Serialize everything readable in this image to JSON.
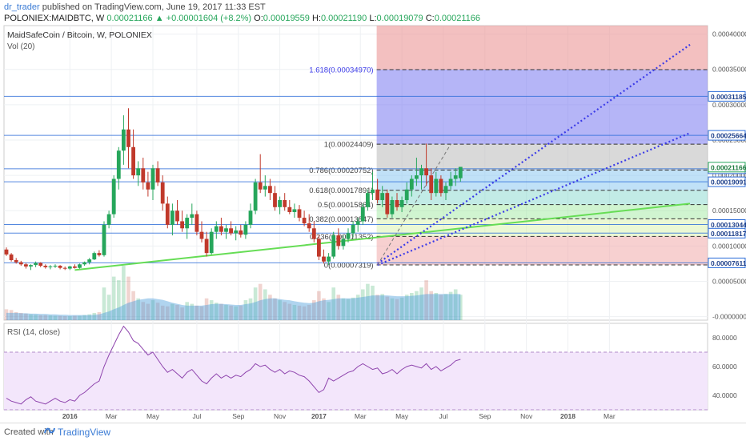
{
  "header": {
    "author": "dr_trader",
    "published_text": "published on TradingView.com, June 19, 2017 11:33 EST",
    "symbol": "POLONIEX:MAIDBTC, W",
    "last": "0.00021166",
    "change": "▲ +0.00001604 (+8.2%)",
    "o_label": "O:",
    "o": "0.00019559",
    "h_label": "H:",
    "h": "0.00021190",
    "l_label": "L:",
    "l": "0.00019079",
    "c_label": "C:",
    "c": "0.00021166"
  },
  "footer": {
    "created_label": "Created with",
    "brand": "TradingView"
  },
  "colors": {
    "up": "#26a65b",
    "down": "#c0392b",
    "hline": "#2a6bd8",
    "support": "#66dd55",
    "channel": "#3b3be8",
    "rsi_line": "#8e44ad",
    "rsi_band": "#f3e6fb"
  },
  "chart_data": {
    "type": "candlestick",
    "title": "MaidSafeCoin / Bitcoin, W, POLONIEX",
    "volume_label": "Vol (20)",
    "x_ticks": [
      "2016",
      "Mar",
      "May",
      "Jul",
      "Sep",
      "Nov",
      "2017",
      "Mar",
      "May",
      "Jul",
      "Sep",
      "Nov",
      "2018",
      "Mar"
    ],
    "y_ticks": [
      "0.00040000",
      "0.00035000",
      "0.00030000",
      "0.00025000",
      "0.00020000",
      "0.00015000",
      "0.00010000",
      "0.00005000",
      "-0.00000000"
    ],
    "ylim": [
      -5e-06,
      0.000412
    ],
    "horizontal_levels": [
      0.00031185,
      0.00025664,
      0.00020932,
      0.00019091,
      0.00013044,
      0.00011817,
      7.611e-05
    ],
    "level_labels": [
      "0.00031185",
      "0.00025664",
      "0.00020932",
      "0.00019091",
      "0.00013044",
      "0.00011817",
      "0.00007611"
    ],
    "current_price": 0.00021166,
    "current_label": "0.00021166",
    "fib_start_index": 76,
    "fib_levels": [
      {
        "ratio": "1.618",
        "price": 0.0003497,
        "label": "1.618(0.00034970)"
      },
      {
        "ratio": "1",
        "price": 0.00024409,
        "label": "1(0.00024409)"
      },
      {
        "ratio": "0.786",
        "price": 0.00020752,
        "label": "0.786(0.00020752)"
      },
      {
        "ratio": "0.618",
        "price": 0.00017891,
        "label": "0.618(0.00017891)"
      },
      {
        "ratio": "0.5",
        "price": 0.00015864,
        "label": "0.5(0.00015864)"
      },
      {
        "ratio": "0.382",
        "price": 0.00013847,
        "label": "0.382(0.00013847)"
      },
      {
        "ratio": "0.236",
        "price": 0.00011352,
        "label": "0.236(0.00011352)"
      },
      {
        "ratio": "0",
        "price": 7.319e-05,
        "label": "0(0.00007319)"
      }
    ],
    "candles": [
      [
        9.5e-05,
        9.8e-05,
        8.6e-05,
        8.8e-05
      ],
      [
        8.8e-05,
        9e-05,
        7.8e-05,
        8e-05
      ],
      [
        8e-05,
        8.3e-05,
        7.5e-05,
        7.7e-05
      ],
      [
        7.7e-05,
        7.9e-05,
        7.2e-05,
        7.4e-05
      ],
      [
        7.4e-05,
        7.6e-05,
        6.8e-05,
        7.1e-05
      ],
      [
        7.1e-05,
        7.4e-05,
        6.6e-05,
        7.3e-05
      ],
      [
        7.3e-05,
        7.8e-05,
        7e-05,
        7.6e-05
      ],
      [
        7.6e-05,
        7.7e-05,
        7e-05,
        7.2e-05
      ],
      [
        7.2e-05,
        7.4e-05,
        6.8e-05,
        7e-05
      ],
      [
        7e-05,
        7.3e-05,
        6.7e-05,
        7.1e-05
      ],
      [
        7.1e-05,
        7.4e-05,
        6.9e-05,
        7.2e-05
      ],
      [
        7.2e-05,
        7.3e-05,
        6.7e-05,
        6.9e-05
      ],
      [
        6.9e-05,
        7.1e-05,
        6.6e-05,
        6.8e-05
      ],
      [
        6.8e-05,
        7.2e-05,
        6.6e-05,
        7.1e-05
      ],
      [
        7.1e-05,
        7.4e-05,
        6.8e-05,
        6.9e-05
      ],
      [
        6.9e-05,
        7.5e-05,
        6.8e-05,
        7.4e-05
      ],
      [
        7.4e-05,
        7.8e-05,
        7.2e-05,
        7.7e-05
      ],
      [
        7.7e-05,
        8.3e-05,
        7.4e-05,
        8.1e-05
      ],
      [
        8.1e-05,
        9.2e-05,
        8e-05,
        9e-05
      ],
      [
        9e-05,
        9.4e-05,
        8.5e-05,
        8.7e-05
      ],
      [
        8.7e-05,
        0.000135,
        8.5e-05,
        0.00013
      ],
      [
        0.00013,
        0.00015,
        0.000125,
        0.000145
      ],
      [
        0.000145,
        0.0002,
        0.00014,
        0.000195
      ],
      [
        0.000195,
        0.00024,
        0.00018,
        0.000235
      ],
      [
        0.000235,
        0.000285,
        0.000215,
        0.000265
      ],
      [
        0.000265,
        0.000295,
        0.00021,
        0.00024
      ],
      [
        0.00024,
        0.000265,
        0.000195,
        0.0002
      ],
      [
        0.0002,
        0.00022,
        0.000185,
        0.00021
      ],
      [
        0.00021,
        0.000225,
        0.00018,
        0.00019
      ],
      [
        0.00019,
        0.000205,
        0.00017,
        0.00018
      ],
      [
        0.00018,
        0.000215,
        0.000165,
        0.00021
      ],
      [
        0.00021,
        0.00022,
        0.000185,
        0.00019
      ],
      [
        0.00019,
        0.0002,
        0.00015,
        0.00016
      ],
      [
        0.00016,
        0.00017,
        0.000125,
        0.00013
      ],
      [
        0.00013,
        0.00016,
        0.000115,
        0.00015
      ],
      [
        0.00015,
        0.000165,
        0.00013,
        0.000135
      ],
      [
        0.000135,
        0.00015,
        0.00012,
        0.000125
      ],
      [
        0.000125,
        0.000145,
        0.00011,
        0.00014
      ],
      [
        0.00014,
        0.00016,
        0.00013,
        0.000145
      ],
      [
        0.000145,
        0.00015,
        0.000115,
        0.00012
      ],
      [
        0.00012,
        0.000135,
        0.000105,
        0.00011
      ],
      [
        0.00011,
        0.00012,
        8.5e-05,
        9e-05
      ],
      [
        9e-05,
        0.000125,
        8.8e-05,
        0.00012
      ],
      [
        0.00012,
        0.000135,
        0.00011,
        0.000128
      ],
      [
        0.000128,
        0.00014,
        0.000115,
        0.00012
      ],
      [
        0.00012,
        0.00013,
        0.00011,
        0.000125
      ],
      [
        0.000125,
        0.000135,
        0.000115,
        0.000118
      ],
      [
        0.000118,
        0.000128,
        0.000108,
        0.000122
      ],
      [
        0.000122,
        0.00013,
        0.000112,
        0.000116
      ],
      [
        0.000116,
        0.000135,
        0.00011,
        0.00013
      ],
      [
        0.00013,
        0.00016,
        0.000125,
        0.00015
      ],
      [
        0.00015,
        0.000195,
        0.000145,
        0.00019
      ],
      [
        0.00019,
        0.00023,
        0.000175,
        0.00018
      ],
      [
        0.00018,
        0.0002,
        0.00017,
        0.000185
      ],
      [
        0.000185,
        0.000195,
        0.000165,
        0.000175
      ],
      [
        0.000175,
        0.000185,
        0.00015,
        0.000155
      ],
      [
        0.000155,
        0.00017,
        0.000145,
        0.000165
      ],
      [
        0.000165,
        0.000175,
        0.00015,
        0.000155
      ],
      [
        0.000155,
        0.000165,
        0.000145,
        0.000148
      ],
      [
        0.000148,
        0.00016,
        0.00014,
        0.000152
      ],
      [
        0.000152,
        0.000158,
        0.000135,
        0.00014
      ],
      [
        0.00014,
        0.00015,
        0.000128,
        0.000132
      ],
      [
        0.000132,
        0.000145,
        0.00012,
        0.000125
      ],
      [
        0.000125,
        0.000135,
        0.000105,
        0.00011
      ],
      [
        0.00011,
        0.000115,
        8e-05,
        8.5e-05
      ],
      [
        8.5e-05,
        9.5e-05,
        7.5e-05,
        7.8e-05
      ],
      [
        7.8e-05,
        9e-05,
        7.3e-05,
        8.5e-05
      ],
      [
        8.5e-05,
        0.00012,
        8.2e-05,
        0.000115
      ],
      [
        0.000115,
        0.000125,
        9.5e-05,
        0.0001
      ],
      [
        0.0001,
        0.000115,
        9.5e-05,
        0.00011
      ],
      [
        0.00011,
        0.000125,
        0.000105,
        0.000118
      ],
      [
        0.000118,
        0.000135,
        0.000112,
        0.00013
      ],
      [
        0.00013,
        0.00014,
        0.00012,
        0.000135
      ],
      [
        0.000135,
        0.00016,
        0.00013,
        0.000155
      ],
      [
        0.000155,
        0.00018,
        0.00015,
        0.000175
      ],
      [
        0.000175,
        0.000205,
        0.000165,
        0.00018
      ],
      [
        0.00018,
        0.000195,
        0.00016,
        0.000165
      ],
      [
        0.000165,
        0.000185,
        0.000155,
        0.000175
      ],
      [
        0.000175,
        0.00018,
        0.00014,
        0.000145
      ],
      [
        0.000145,
        0.00017,
        0.00014,
        0.000165
      ],
      [
        0.000165,
        0.000175,
        0.00015,
        0.000155
      ],
      [
        0.000155,
        0.00017,
        0.000148,
        0.000165
      ],
      [
        0.000165,
        0.00019,
        0.00016,
        0.00018
      ],
      [
        0.00018,
        0.0002,
        0.00017,
        0.000195
      ],
      [
        0.000195,
        0.000225,
        0.000185,
        0.0002
      ],
      [
        0.0002,
        0.000215,
        0.00018,
        0.00021
      ],
      [
        0.00021,
        0.000245,
        0.000185,
        0.0002
      ],
      [
        0.0002,
        0.00021,
        0.000165,
        0.000175
      ],
      [
        0.000175,
        0.000205,
        0.00017,
        0.000195
      ],
      [
        0.000195,
        0.0002,
        0.00017,
        0.000175
      ],
      [
        0.000175,
        0.00019,
        0.000165,
        0.000185
      ],
      [
        0.000185,
        0.000205,
        0.00018,
        0.000195
      ],
      [
        0.000195,
        0.00021,
        0.000185,
        0.0002
      ],
      [
        0.000196,
        0.000212,
        0.000191,
        0.000212
      ]
    ],
    "volumes": [
      30,
      28,
      22,
      20,
      18,
      16,
      15,
      14,
      14,
      13,
      12,
      12,
      11,
      11,
      12,
      12,
      14,
      16,
      20,
      22,
      90,
      70,
      120,
      110,
      150,
      120,
      80,
      60,
      50,
      45,
      55,
      48,
      40,
      38,
      45,
      42,
      35,
      50,
      45,
      40,
      38,
      60,
      55,
      48,
      45,
      42,
      40,
      38,
      40,
      55,
      60,
      90,
      100,
      85,
      70,
      60,
      55,
      50,
      45,
      42,
      40,
      38,
      42,
      55,
      80,
      60,
      50,
      90,
      70,
      60,
      58,
      62,
      70,
      85,
      100,
      95,
      70,
      72,
      65,
      60,
      58,
      62,
      70,
      75,
      80,
      90,
      110,
      80,
      75,
      70,
      72,
      78,
      85,
      70
    ],
    "volume_ma": [
      20,
      20,
      20,
      19,
      19,
      18,
      18,
      17,
      17,
      16,
      16,
      15,
      15,
      14,
      14,
      14,
      14,
      14,
      15,
      16,
      20,
      24,
      30,
      35,
      42,
      48,
      52,
      56,
      58,
      60,
      60,
      58,
      56,
      52,
      48,
      45,
      42,
      40,
      40,
      40,
      40,
      42,
      44,
      45,
      45,
      44,
      43,
      42,
      42,
      44,
      46,
      50,
      55,
      58,
      60,
      60,
      58,
      56,
      55,
      52,
      50,
      48,
      47,
      48,
      52,
      55,
      56,
      58,
      60,
      60,
      60,
      60,
      62,
      64,
      66,
      68,
      68,
      68,
      68,
      67,
      66,
      66,
      66,
      67,
      68,
      70,
      72,
      72,
      72,
      72,
      72,
      72,
      72,
      72
    ],
    "rsi_label": "RSI (14, close)",
    "rsi_ticks": [
      "80.0000",
      "60.0000",
      "40.0000"
    ],
    "rsi_values": [
      38,
      36,
      35,
      34,
      37,
      39,
      36,
      35,
      34,
      36,
      38,
      36,
      35,
      37,
      36,
      40,
      42,
      45,
      48,
      50,
      60,
      68,
      75,
      82,
      88,
      84,
      78,
      76,
      72,
      68,
      70,
      65,
      60,
      56,
      58,
      55,
      52,
      56,
      58,
      54,
      50,
      48,
      52,
      55,
      52,
      54,
      52,
      54,
      53,
      56,
      58,
      62,
      60,
      61,
      58,
      56,
      58,
      55,
      57,
      56,
      54,
      53,
      50,
      46,
      42,
      44,
      52,
      50,
      52,
      54,
      56,
      57,
      60,
      62,
      60,
      58,
      59,
      55,
      56,
      58,
      55,
      58,
      60,
      61,
      60,
      59,
      62,
      58,
      60,
      57,
      59,
      61,
      64,
      65
    ],
    "rsi_range": [
      30,
      90
    ],
    "rsi_bands": [
      70,
      30
    ],
    "support_line": {
      "from": [
        14,
        6.6e-05
      ],
      "to": [
        140,
        0.00016
      ]
    },
    "channel_upper": {
      "from": [
        76,
        7.5e-05
      ],
      "to": [
        140,
        0.000385
      ]
    },
    "channel_lower": {
      "from": [
        76,
        7.3e-05
      ],
      "to": [
        140,
        0.00026
      ]
    },
    "x_span": 141
  }
}
